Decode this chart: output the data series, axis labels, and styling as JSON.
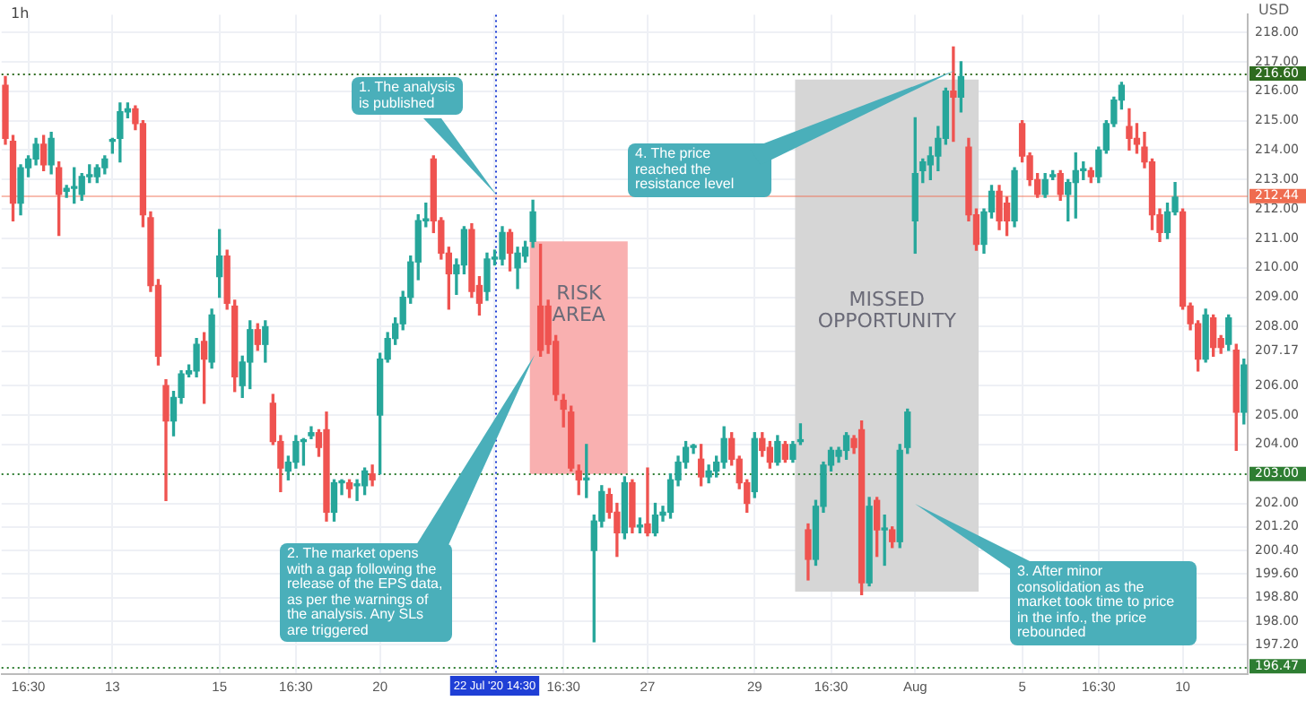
{
  "chart_data": {
    "type": "candlestick",
    "title": "1h",
    "ylabel": "USD",
    "categories": [
      null,
      null,
      null,
      "16:30",
      null,
      null,
      null,
      null,
      null,
      null,
      null,
      null,
      null,
      null,
      "13",
      null,
      null,
      null,
      null,
      null,
      null,
      null,
      null,
      null,
      null,
      null,
      null,
      null,
      "15",
      null,
      null,
      null,
      null,
      null,
      null,
      null,
      null,
      null,
      "16:30",
      null,
      null,
      null,
      null,
      null,
      null,
      null,
      null,
      null,
      null,
      "20",
      null,
      null,
      null,
      null,
      null,
      null,
      null,
      null,
      null,
      null,
      null,
      null,
      null,
      null,
      "22 Jul '20 14:30",
      null,
      null,
      null,
      null,
      null,
      null,
      null,
      null,
      "16:30",
      null,
      null,
      null,
      null,
      null,
      null,
      null,
      null,
      null,
      null,
      "27",
      null,
      null,
      null,
      null,
      null,
      null,
      null,
      null,
      null,
      null,
      null,
      null,
      null,
      "29",
      null,
      null,
      null,
      null,
      null,
      null,
      null,
      null,
      null,
      "16:30",
      null,
      null,
      null,
      null,
      null,
      null,
      null,
      null,
      null,
      null,
      "Aug",
      null,
      null,
      null,
      null,
      null,
      null,
      null,
      null,
      null,
      null,
      null,
      null,
      null,
      "5",
      null,
      null,
      null,
      null,
      null,
      null,
      null,
      null,
      null,
      "16:30",
      null,
      null,
      null,
      null,
      null,
      null,
      null,
      null,
      null,
      null,
      "10",
      null,
      null,
      null,
      null,
      null,
      null,
      null,
      null
    ],
    "ohlc": [
      [
        216.2,
        216.5,
        214.2,
        214.4
      ],
      [
        214.3,
        214.5,
        211.6,
        212.2
      ],
      [
        212.2,
        213.5,
        211.8,
        213.4
      ],
      [
        213.4,
        213.8,
        213.1,
        213.7
      ],
      [
        213.7,
        214.4,
        213.5,
        214.2
      ],
      [
        214.2,
        214.5,
        213.3,
        213.5
      ],
      [
        213.5,
        214.6,
        213.2,
        214.4
      ],
      [
        213.4,
        213.6,
        211.1,
        212.5
      ],
      [
        212.6,
        212.8,
        212.4,
        212.7
      ],
      [
        212.7,
        213.4,
        212.2,
        212.7
      ],
      [
        212.5,
        213.2,
        212.3,
        213.1
      ],
      [
        213.1,
        213.5,
        212.9,
        213.1
      ],
      [
        213.1,
        213.5,
        212.9,
        213.4
      ],
      [
        213.4,
        213.8,
        213.2,
        213.7
      ],
      [
        214.3,
        214.4,
        213.9,
        214.3
      ],
      [
        214.4,
        215.6,
        213.6,
        215.3
      ],
      [
        215.3,
        215.6,
        215.1,
        215.4
      ],
      [
        215.4,
        215.5,
        214.7,
        214.9
      ],
      [
        214.9,
        215.0,
        211.4,
        211.8
      ],
      [
        211.7,
        211.9,
        209.2,
        209.4
      ],
      [
        209.4,
        209.6,
        206.7,
        207.0
      ],
      [
        206.0,
        206.2,
        202.1,
        204.8
      ],
      [
        204.8,
        205.8,
        204.3,
        205.6
      ],
      [
        205.6,
        206.5,
        205.4,
        206.4
      ],
      [
        206.4,
        206.7,
        206.3,
        206.5
      ],
      [
        206.5,
        207.6,
        206.3,
        207.4
      ],
      [
        207.5,
        207.8,
        205.4,
        206.9
      ],
      [
        206.8,
        208.6,
        206.6,
        208.4
      ],
      [
        209.7,
        211.3,
        209.0,
        210.4
      ],
      [
        210.4,
        210.6,
        208.6,
        208.8
      ],
      [
        208.7,
        208.9,
        205.8,
        206.3
      ],
      [
        206.0,
        207.0,
        205.6,
        206.8
      ],
      [
        206.8,
        208.2,
        205.9,
        207.9
      ],
      [
        207.9,
        208.1,
        207.2,
        207.4
      ],
      [
        207.4,
        208.2,
        206.8,
        208.0
      ],
      [
        205.4,
        205.7,
        204.0,
        204.1
      ],
      [
        204.1,
        204.3,
        202.4,
        203.2
      ],
      [
        203.1,
        203.6,
        202.8,
        203.4
      ],
      [
        203.4,
        204.3,
        203.2,
        204.1
      ],
      [
        204.1,
        204.2,
        203.3,
        204.1
      ],
      [
        204.3,
        204.6,
        204.2,
        204.4
      ],
      [
        204.4,
        204.5,
        203.6,
        203.9
      ],
      [
        204.5,
        205.1,
        201.4,
        201.7
      ],
      [
        201.7,
        202.8,
        201.4,
        202.7
      ],
      [
        202.7,
        202.8,
        202.3,
        202.7
      ],
      [
        202.7,
        202.8,
        202.2,
        202.5
      ],
      [
        202.6,
        202.8,
        202.1,
        202.6
      ],
      [
        202.6,
        203.2,
        202.3,
        203.1
      ],
      [
        203.0,
        203.3,
        202.6,
        202.8
      ],
      [
        205.0,
        207.1,
        203.0,
        206.9
      ],
      [
        206.9,
        207.8,
        206.8,
        207.6
      ],
      [
        207.6,
        208.3,
        207.4,
        208.1
      ],
      [
        208.1,
        209.2,
        207.9,
        209.0
      ],
      [
        209.0,
        210.4,
        208.8,
        210.2
      ],
      [
        210.2,
        211.8,
        209.6,
        211.6
      ],
      [
        211.6,
        212.2,
        211.4,
        211.6
      ],
      [
        213.7,
        213.8,
        211.2,
        211.6
      ],
      [
        211.6,
        211.7,
        210.3,
        210.5
      ],
      [
        210.5,
        210.7,
        208.6,
        209.8
      ],
      [
        209.8,
        210.3,
        209.1,
        210.1
      ],
      [
        210.1,
        211.4,
        209.8,
        211.3
      ],
      [
        211.3,
        211.5,
        209.0,
        209.2
      ],
      [
        209.4,
        209.7,
        208.4,
        208.8
      ],
      [
        209.2,
        210.5,
        208.9,
        210.3
      ],
      [
        210.3,
        210.6,
        210.1,
        210.3
      ],
      [
        210.3,
        211.4,
        210.1,
        211.2
      ],
      [
        211.2,
        211.3,
        209.9,
        210.5
      ],
      [
        210.0,
        210.7,
        209.3,
        210.5
      ],
      [
        210.4,
        210.9,
        210.2,
        210.7
      ],
      [
        210.9,
        212.3,
        210.7,
        211.9
      ],
      [
        208.7,
        210.8,
        207.0,
        207.2
      ],
      [
        208.7,
        208.9,
        207.1,
        207.4
      ],
      [
        207.5,
        207.7,
        205.5,
        205.7
      ],
      [
        205.5,
        205.7,
        204.6,
        205.2
      ],
      [
        205.1,
        205.3,
        203.1,
        203.2
      ],
      [
        203.1,
        203.3,
        202.3,
        202.8
      ],
      [
        202.8,
        204.0,
        202.2,
        202.8
      ],
      [
        200.4,
        201.6,
        197.3,
        201.4
      ],
      [
        201.4,
        202.6,
        201.2,
        202.4
      ],
      [
        202.3,
        202.5,
        201.5,
        201.7
      ],
      [
        201.7,
        202.0,
        200.2,
        201.0
      ],
      [
        201.0,
        202.9,
        200.8,
        202.7
      ],
      [
        202.7,
        202.8,
        201.0,
        201.2
      ],
      [
        201.2,
        201.5,
        201.0,
        201.2
      ],
      [
        201.3,
        203.2,
        200.9,
        201.0
      ],
      [
        201.0,
        202.0,
        200.9,
        201.6
      ],
      [
        201.6,
        201.9,
        201.4,
        201.7
      ],
      [
        201.7,
        203.0,
        201.5,
        202.8
      ],
      [
        202.8,
        203.6,
        202.6,
        203.4
      ],
      [
        203.4,
        204.1,
        203.2,
        203.9
      ],
      [
        203.9,
        204.0,
        203.7,
        203.9
      ],
      [
        203.5,
        204.0,
        202.6,
        202.9
      ],
      [
        202.9,
        203.3,
        202.7,
        203.1
      ],
      [
        203.1,
        203.6,
        202.9,
        203.4
      ],
      [
        203.4,
        204.6,
        203.2,
        204.2
      ],
      [
        204.2,
        204.4,
        203.3,
        203.5
      ],
      [
        203.5,
        203.6,
        202.5,
        202.7
      ],
      [
        202.7,
        202.8,
        201.7,
        202.0
      ],
      [
        202.4,
        204.4,
        202.2,
        204.2
      ],
      [
        204.2,
        204.4,
        203.6,
        203.8
      ],
      [
        203.9,
        204.1,
        203.2,
        203.4
      ],
      [
        203.4,
        204.3,
        203.3,
        204.1
      ],
      [
        204.0,
        204.1,
        203.4,
        203.5
      ],
      [
        203.5,
        204.1,
        203.4,
        204.0
      ],
      [
        204.1,
        204.7,
        204.0,
        204.1
      ],
      [
        201.1,
        201.3,
        199.4,
        200.1
      ],
      [
        200.1,
        202.1,
        199.9,
        201.9
      ],
      [
        201.9,
        203.4,
        201.7,
        203.3
      ],
      [
        203.3,
        203.9,
        203.1,
        203.8
      ],
      [
        203.6,
        203.9,
        203.4,
        203.8
      ],
      [
        203.8,
        204.4,
        203.5,
        204.3
      ],
      [
        204.2,
        204.3,
        203.7,
        203.9
      ],
      [
        204.5,
        204.8,
        198.9,
        199.3
      ],
      [
        199.3,
        202.2,
        199.2,
        201.9
      ],
      [
        202.1,
        202.2,
        200.2,
        201.1
      ],
      [
        201.1,
        201.6,
        199.9,
        201.1
      ],
      [
        201.1,
        201.2,
        200.5,
        200.7
      ],
      [
        200.7,
        204.0,
        200.5,
        203.8
      ],
      [
        203.9,
        205.2,
        203.7,
        205.1
      ],
      [
        211.6,
        215.1,
        210.5,
        213.2
      ],
      [
        213.3,
        213.7,
        212.9,
        213.6
      ],
      [
        213.5,
        214.1,
        213.0,
        213.8
      ],
      [
        213.8,
        214.8,
        213.3,
        214.4
      ],
      [
        214.4,
        216.1,
        214.2,
        216.0
      ],
      [
        216.0,
        217.5,
        214.3,
        215.8
      ],
      [
        215.8,
        217.0,
        215.3,
        216.5
      ],
      [
        214.1,
        214.4,
        211.6,
        211.8
      ],
      [
        211.8,
        212.0,
        210.6,
        210.8
      ],
      [
        210.8,
        212.0,
        210.5,
        211.9
      ],
      [
        211.9,
        212.8,
        211.7,
        212.6
      ],
      [
        212.6,
        212.8,
        211.3,
        211.6
      ],
      [
        212.2,
        212.4,
        211.1,
        211.6
      ],
      [
        211.6,
        213.4,
        211.4,
        213.3
      ],
      [
        214.9,
        215.0,
        213.6,
        213.8
      ],
      [
        213.8,
        213.9,
        212.8,
        213.0
      ],
      [
        213.0,
        213.2,
        212.4,
        212.5
      ],
      [
        212.5,
        213.2,
        212.4,
        213.0
      ],
      [
        213.1,
        213.3,
        213.0,
        213.1
      ],
      [
        213.2,
        213.3,
        212.3,
        212.5
      ],
      [
        212.5,
        213.0,
        211.6,
        212.9
      ],
      [
        212.9,
        213.9,
        211.7,
        213.3
      ],
      [
        213.3,
        213.6,
        213.0,
        213.3
      ],
      [
        213.3,
        213.4,
        212.9,
        213.1
      ],
      [
        213.1,
        214.1,
        212.9,
        214.0
      ],
      [
        214.0,
        215.0,
        213.9,
        214.9
      ],
      [
        214.9,
        215.8,
        214.8,
        215.7
      ],
      [
        215.7,
        216.3,
        215.4,
        216.2
      ],
      [
        214.8,
        215.4,
        214.0,
        214.4
      ],
      [
        214.4,
        214.9,
        213.9,
        214.2
      ],
      [
        214.1,
        214.6,
        213.4,
        213.6
      ],
      [
        213.6,
        213.7,
        211.3,
        211.8
      ],
      [
        211.8,
        212.0,
        210.9,
        211.2
      ],
      [
        211.2,
        212.2,
        211.0,
        211.9
      ],
      [
        211.9,
        212.9,
        211.8,
        212.4
      ],
      [
        211.9,
        212.0,
        208.6,
        208.7
      ],
      [
        208.7,
        208.8,
        207.9,
        208.1
      ],
      [
        208.1,
        208.2,
        206.5,
        206.9
      ],
      [
        206.9,
        208.6,
        206.8,
        208.4
      ],
      [
        208.3,
        208.4,
        207.0,
        207.3
      ],
      [
        207.6,
        207.7,
        207.1,
        207.3
      ],
      [
        207.4,
        208.4,
        207.2,
        208.3
      ],
      [
        207.2,
        207.4,
        203.8,
        205.1
      ],
      [
        205.1,
        206.9,
        204.7,
        206.7
      ]
    ],
    "colors": [
      "#ef5350",
      "#ef5350",
      "#26a69a",
      "#26a69a",
      "#26a69a",
      "#ef5350",
      "#26a69a",
      "#ef5350",
      "#26a69a",
      "#26a69a",
      "#26a69a",
      "#26a69a",
      "#26a69a",
      "#26a69a",
      "#26a69a",
      "#26a69a",
      "#26a69a",
      "#ef5350",
      "#ef5350",
      "#ef5350",
      "#ef5350",
      "#ef5350",
      "#26a69a",
      "#26a69a",
      "#26a69a",
      "#26a69a",
      "#ef5350",
      "#26a69a",
      "#26a69a",
      "#ef5350",
      "#ef5350",
      "#26a69a",
      "#26a69a",
      "#ef5350",
      "#26a69a",
      "#ef5350",
      "#ef5350",
      "#26a69a",
      "#26a69a",
      "#26a69a",
      "#26a69a",
      "#ef5350",
      "#ef5350",
      "#26a69a",
      "#26a69a",
      "#ef5350",
      "#26a69a",
      "#26a69a",
      "#ef5350",
      "#26a69a",
      "#26a69a",
      "#26a69a",
      "#26a69a",
      "#26a69a",
      "#26a69a",
      "#26a69a",
      "#ef5350",
      "#ef5350",
      "#ef5350",
      "#26a69a",
      "#26a69a",
      "#ef5350",
      "#ef5350",
      "#26a69a",
      "#26a69a",
      "#26a69a",
      "#ef5350",
      "#26a69a",
      "#26a69a",
      "#26a69a",
      "#ef5350",
      "#ef5350",
      "#ef5350",
      "#ef5350",
      "#ef5350",
      "#ef5350",
      "#26a69a",
      "#26a69a",
      "#26a69a",
      "#ef5350",
      "#ef5350",
      "#26a69a",
      "#ef5350",
      "#26a69a",
      "#ef5350",
      "#26a69a",
      "#26a69a",
      "#26a69a",
      "#26a69a",
      "#26a69a",
      "#26a69a",
      "#ef5350",
      "#26a69a",
      "#26a69a",
      "#26a69a",
      "#ef5350",
      "#ef5350",
      "#ef5350",
      "#26a69a",
      "#ef5350",
      "#ef5350",
      "#26a69a",
      "#ef5350",
      "#26a69a",
      "#26a69a",
      "#ef5350",
      "#26a69a",
      "#26a69a",
      "#26a69a",
      "#26a69a",
      "#26a69a",
      "#ef5350",
      "#ef5350",
      "#26a69a",
      "#ef5350",
      "#26a69a",
      "#ef5350",
      "#26a69a",
      "#26a69a",
      "#26a69a",
      "#26a69a",
      "#26a69a",
      "#26a69a",
      "#26a69a",
      "#ef5350",
      "#26a69a",
      "#ef5350",
      "#ef5350",
      "#26a69a",
      "#26a69a",
      "#ef5350",
      "#ef5350",
      "#26a69a",
      "#ef5350",
      "#ef5350",
      "#ef5350",
      "#26a69a",
      "#26a69a",
      "#ef5350",
      "#26a69a",
      "#26a69a",
      "#26a69a",
      "#ef5350",
      "#26a69a",
      "#26a69a",
      "#26a69a",
      "#26a69a",
      "#ef5350",
      "#ef5350",
      "#ef5350",
      "#ef5350",
      "#ef5350",
      "#26a69a",
      "#26a69a",
      "#ef5350",
      "#ef5350",
      "#ef5350",
      "#26a69a",
      "#ef5350",
      "#ef5350",
      "#26a69a",
      "#ef5350",
      "#26a69a"
    ],
    "ylim": [
      196.2,
      218.6
    ],
    "yticks": [
      {
        "value": 218,
        "label": "218.00"
      },
      {
        "value": 217,
        "label": "217.00"
      },
      {
        "value": 216,
        "label": "216.00"
      },
      {
        "value": 215,
        "label": "215.00"
      },
      {
        "value": 214,
        "label": "214.00"
      },
      {
        "value": 213,
        "label": "213.00"
      },
      {
        "value": 212,
        "label": "212.00"
      },
      {
        "value": 211,
        "label": "211.00"
      },
      {
        "value": 210,
        "label": "210.00"
      },
      {
        "value": 209,
        "label": "209.00"
      },
      {
        "value": 208,
        "label": "208.00"
      },
      {
        "value": 207.17,
        "label": "207.17"
      },
      {
        "value": 206,
        "label": "206.00"
      },
      {
        "value": 205,
        "label": "205.00"
      },
      {
        "value": 204,
        "label": "204.00"
      },
      {
        "value": 202,
        "label": "202.00"
      },
      {
        "value": 201.2,
        "label": "201.20"
      },
      {
        "value": 200.4,
        "label": "200.40"
      },
      {
        "value": 199.6,
        "label": "199.60"
      },
      {
        "value": 198.8,
        "label": "198.80"
      },
      {
        "value": 198,
        "label": "198.00"
      },
      {
        "value": 197.2,
        "label": "197.20"
      }
    ],
    "grid": true,
    "ref_lines": [
      {
        "axis": "y",
        "value": 216.6,
        "label": "216.60",
        "color": "#2e6b1f",
        "line_style": "dotted"
      },
      {
        "axis": "y",
        "value": 212.44,
        "label": "212.44",
        "color": "#ef6c50",
        "line_style": "solid"
      },
      {
        "axis": "y",
        "value": 203,
        "label": "203.00",
        "color": "#2e7d32",
        "line_style": "dotted"
      },
      {
        "axis": "y",
        "value": 196.47,
        "label": "196.47",
        "color": "#2e7d32",
        "line_style": "dotted"
      },
      {
        "axis": "x",
        "value": "22 Jul '20 14:30",
        "color": "#1f3fd6",
        "line_style": "dotted"
      }
    ],
    "bands": [
      {
        "axis": "y",
        "from": 203,
        "to": 210.9,
        "label": "RISK AREA",
        "color": "#f9b0b0"
      },
      {
        "axis": "y",
        "from": 199,
        "to": 216.4,
        "label": "MISSED OPPORTUNITY",
        "color": "#d6d6d6"
      }
    ],
    "annotations": [
      "1. The analysis is published",
      "2. The market opens with a gap following the release of the EPS data, as per the warnings of the analysis. Any SLs are triggered",
      "3. After minor consolidation as the market took time to price in the info., the price rebounded",
      "4. The price reached the resistance level"
    ]
  }
}
